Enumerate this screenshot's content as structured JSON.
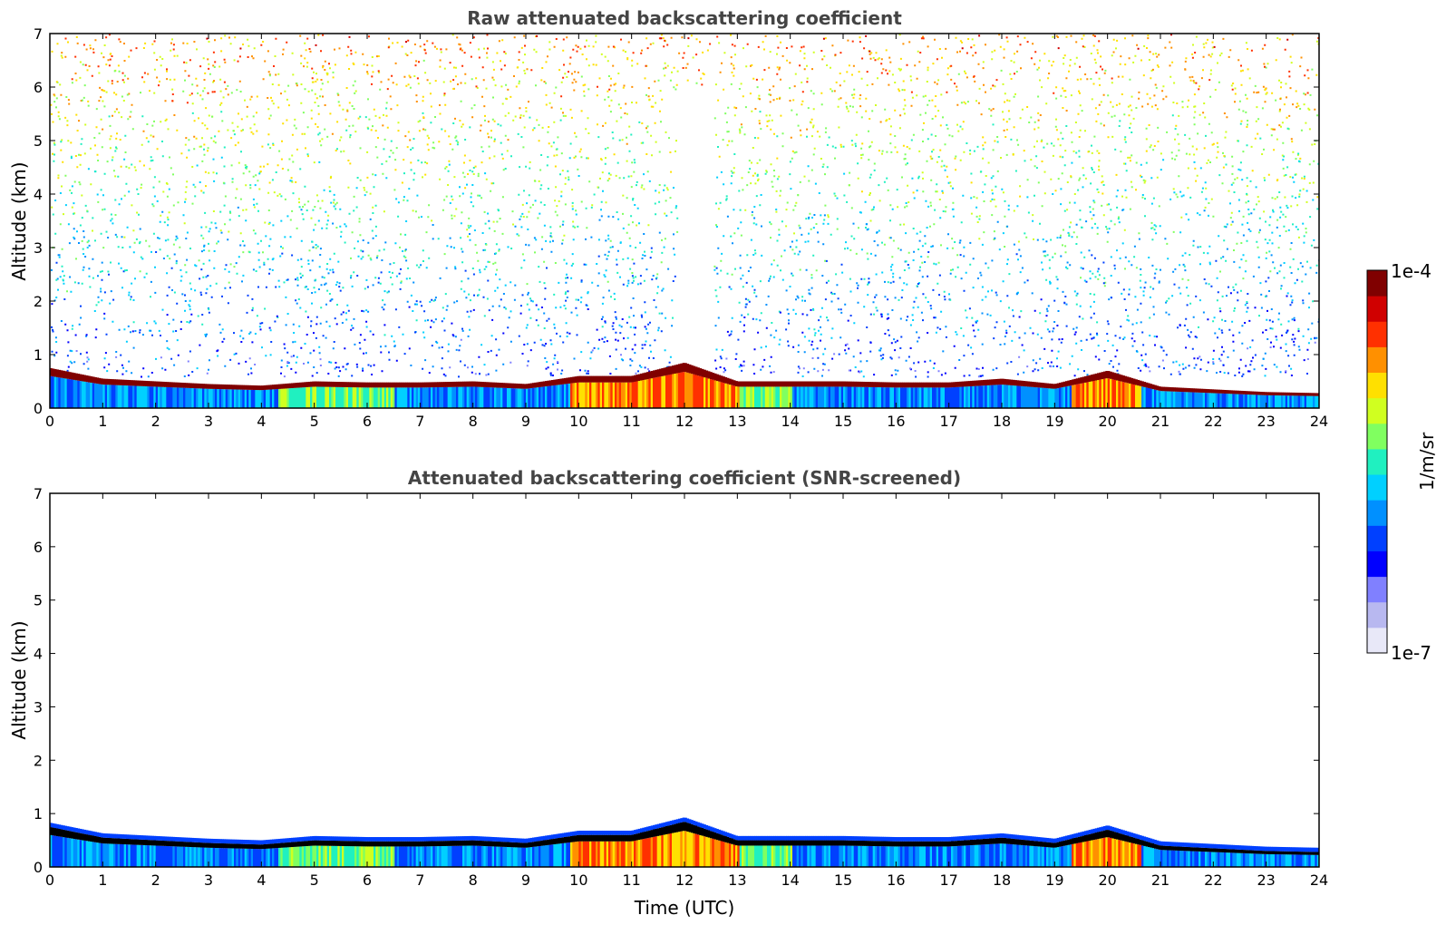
{
  "chart_data": [
    {
      "type": "heatmap",
      "title": "Raw attenuated backscattering coefficient",
      "xlabel": "",
      "ylabel": "Altitude (km)",
      "xlim": [
        0,
        24
      ],
      "ylim": [
        0,
        7
      ],
      "xticks": [
        "0",
        "1",
        "2",
        "3",
        "4",
        "5",
        "6",
        "7",
        "8",
        "9",
        "10",
        "11",
        "12",
        "13",
        "14",
        "15",
        "16",
        "17",
        "18",
        "19",
        "20",
        "21",
        "22",
        "23",
        "24"
      ],
      "yticks": [
        "0",
        "1",
        "2",
        "3",
        "4",
        "5",
        "6",
        "7"
      ],
      "noise_background": true,
      "layer_top_km": [
        0.75,
        0.55,
        0.5,
        0.45,
        0.42,
        0.5,
        0.48,
        0.48,
        0.5,
        0.45,
        0.6,
        0.6,
        0.85,
        0.5,
        0.5,
        0.5,
        0.48,
        0.48,
        0.55,
        0.45,
        0.7,
        0.4,
        0.35,
        0.3,
        0.28
      ]
    },
    {
      "type": "heatmap",
      "title": "Attenuated backscattering coefficient (SNR-screened)",
      "xlabel": "Time (UTC)",
      "ylabel": "Altitude (km)",
      "xlim": [
        0,
        24
      ],
      "ylim": [
        0,
        7
      ],
      "xticks": [
        "0",
        "1",
        "2",
        "3",
        "4",
        "5",
        "6",
        "7",
        "8",
        "9",
        "10",
        "11",
        "12",
        "13",
        "14",
        "15",
        "16",
        "17",
        "18",
        "19",
        "20",
        "21",
        "22",
        "23",
        "24"
      ],
      "yticks": [
        "0",
        "1",
        "2",
        "3",
        "4",
        "5",
        "6",
        "7"
      ],
      "noise_background": false,
      "layer_top_km": [
        0.75,
        0.55,
        0.5,
        0.45,
        0.42,
        0.5,
        0.48,
        0.48,
        0.5,
        0.45,
        0.6,
        0.6,
        0.85,
        0.5,
        0.5,
        0.5,
        0.48,
        0.48,
        0.55,
        0.45,
        0.7,
        0.4,
        0.35,
        0.3,
        0.28
      ]
    }
  ],
  "colorbar": {
    "label": "1/m/sr",
    "max_label": "1e-4",
    "min_label": "1e-7",
    "colors": [
      "#e8e8f8",
      "#b8b8f0",
      "#8080ff",
      "#0000ff",
      "#0040ff",
      "#0090ff",
      "#00d0ff",
      "#20f0c0",
      "#80ff60",
      "#d0ff20",
      "#ffe000",
      "#ff9000",
      "#ff3000",
      "#d00000",
      "#800000"
    ]
  }
}
